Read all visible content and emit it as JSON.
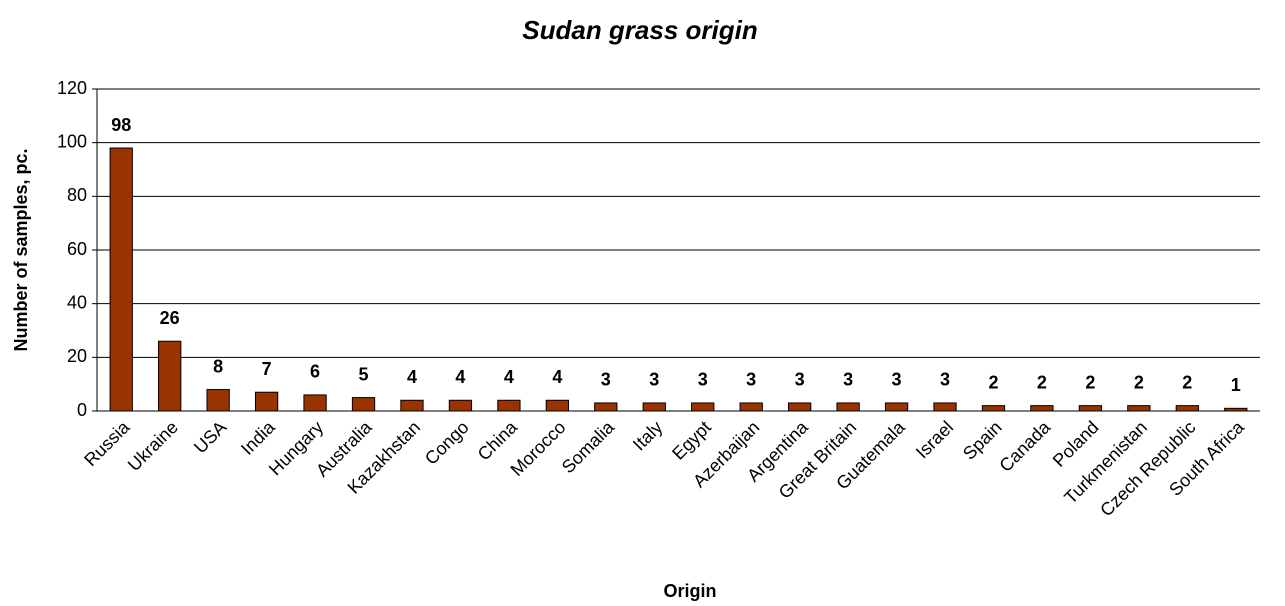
{
  "chart_data": {
    "type": "bar",
    "title": "Sudan grass origin",
    "x_label": "Origin",
    "y_label": "Number of samples, pc.",
    "categories": [
      "Russia",
      "Ukraine",
      "USA",
      "India",
      "Hungary",
      "Australia",
      "Kazakhstan",
      "Congo",
      "China",
      "Morocco",
      "Somalia",
      "Italy",
      "Egypt",
      "Azerbaijan",
      "Argentina",
      "Great Britain",
      "Guatemala",
      "Israel",
      "Spain",
      "Canada",
      "Poland",
      "Turkmenistan",
      "Czech Republic",
      "South Africa"
    ],
    "values": [
      98,
      26,
      8,
      7,
      6,
      5,
      4,
      4,
      4,
      4,
      3,
      3,
      3,
      3,
      3,
      3,
      3,
      3,
      2,
      2,
      2,
      2,
      2,
      1
    ],
    "color": "#993300",
    "ylim": [
      0,
      120
    ],
    "yticks": [
      0,
      20,
      40,
      60,
      80,
      100,
      120
    ],
    "grid": true
  }
}
